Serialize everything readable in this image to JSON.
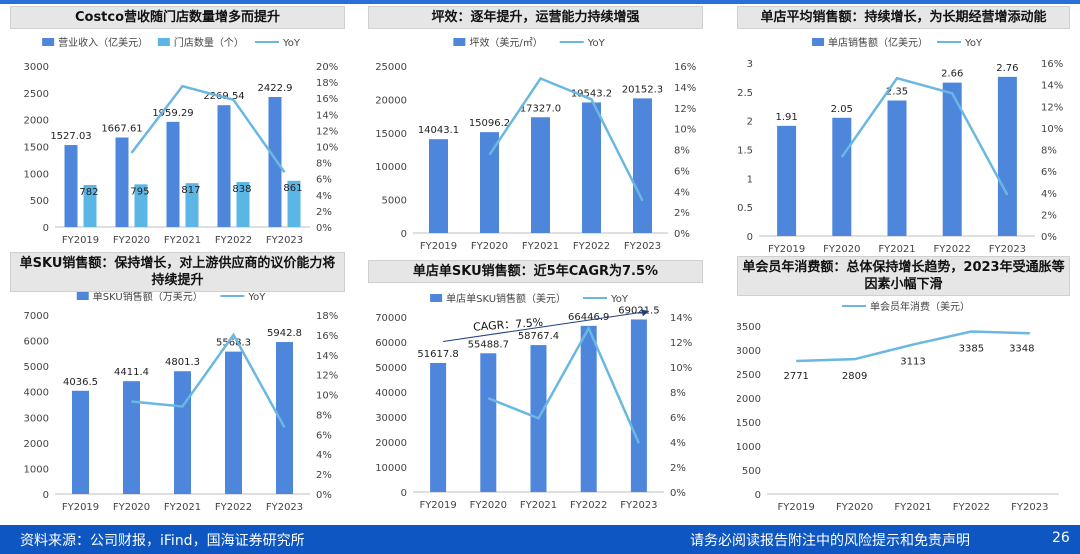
{
  "footer": {
    "source": "资料来源：公司财报，iFind，国海证券研究所",
    "disclaimer": "请务必阅读报告附注中的风险提示和免责声明",
    "page": "26"
  },
  "colors": {
    "bar": "#4e86dc",
    "bar2": "#5bb6e6",
    "line": "#6ab8e2",
    "footer": "#0e56c2"
  },
  "chart_data": [
    {
      "type": "bar",
      "title": "Costco营收随门店数量增多而提升",
      "categories": [
        "FY2019",
        "FY2020",
        "FY2021",
        "FY2022",
        "FY2023"
      ],
      "series": [
        {
          "name": "营业收入（亿美元）",
          "kind": "bar",
          "axis": "left",
          "values": [
            1527.03,
            1667.61,
            1959.29,
            2269.54,
            2422.9
          ],
          "labels": [
            "1527.03",
            "1667.61",
            "1959.29",
            "2269.54",
            "2422.9"
          ]
        },
        {
          "name": "门店数量（个）",
          "kind": "bar",
          "axis": "left",
          "values": [
            782,
            795,
            817,
            838,
            861
          ],
          "labels": [
            "782",
            "795",
            "817",
            "838",
            "861"
          ]
        },
        {
          "name": "YoY",
          "kind": "line",
          "axis": "right",
          "x": [
            "FY2020",
            "FY2021",
            "FY2022",
            "FY2023"
          ],
          "values": [
            9.2,
            17.5,
            15.8,
            6.8
          ]
        }
      ],
      "ylim": [
        0,
        3000
      ],
      "yticks": [
        "0",
        "500",
        "1000",
        "1500",
        "2000",
        "2500",
        "3000"
      ],
      "y2lim": [
        0,
        20
      ],
      "y2ticks": [
        "0%",
        "2%",
        "4%",
        "6%",
        "8%",
        "10%",
        "12%",
        "14%",
        "16%",
        "18%",
        "20%"
      ],
      "legend": "top"
    },
    {
      "type": "bar",
      "title": "坪效：逐年提升，运营能力持续增强",
      "categories": [
        "FY2019",
        "FY2020",
        "FY2021",
        "FY2022",
        "FY2023"
      ],
      "series": [
        {
          "name": "坪效（美元/㎡）",
          "kind": "bar",
          "axis": "left",
          "values": [
            14043.1,
            15096.2,
            17327.0,
            19543.2,
            20152.3
          ],
          "labels": [
            "14043.1",
            "15096.2",
            "17327.0",
            "19543.2",
            "20152.3"
          ]
        },
        {
          "name": "YoY",
          "kind": "line",
          "axis": "right",
          "x": [
            "FY2020",
            "FY2021",
            "FY2022",
            "FY2023"
          ],
          "values": [
            7.5,
            14.8,
            12.8,
            3.1
          ]
        }
      ],
      "ylim": [
        0,
        25000
      ],
      "yticks": [
        "0",
        "5000",
        "10000",
        "15000",
        "20000",
        "25000"
      ],
      "y2lim": [
        0,
        16
      ],
      "y2ticks": [
        "0%",
        "2%",
        "4%",
        "6%",
        "8%",
        "10%",
        "12%",
        "14%",
        "16%"
      ],
      "legend": "top"
    },
    {
      "type": "bar",
      "title": "单店平均销售额：持续增长，为长期经营增添动能",
      "categories": [
        "FY2019",
        "FY2020",
        "FY2021",
        "FY2022",
        "FY2023"
      ],
      "series": [
        {
          "name": "单店销售额（亿美元）",
          "kind": "bar",
          "axis": "left",
          "values": [
            1.91,
            2.05,
            2.35,
            2.66,
            2.76
          ],
          "labels": [
            "1.91",
            "2.05",
            "2.35",
            "2.66",
            "2.76"
          ]
        },
        {
          "name": "YoY",
          "kind": "line",
          "axis": "right",
          "x": [
            "FY2020",
            "FY2021",
            "FY2022",
            "FY2023"
          ],
          "values": [
            7.3,
            14.6,
            13.2,
            3.8
          ]
        }
      ],
      "ylim": [
        0,
        3
      ],
      "yticks": [
        "0",
        "0.5",
        "1",
        "1.5",
        "2",
        "2.5",
        "3"
      ],
      "y2lim": [
        0,
        16
      ],
      "y2ticks": [
        "0%",
        "2%",
        "4%",
        "6%",
        "8%",
        "10%",
        "12%",
        "14%",
        "16%"
      ],
      "legend": "top"
    },
    {
      "type": "bar",
      "title": "单SKU销售额：保持增长，对上游供应商的议价能力将持续提升",
      "categories": [
        "FY2019",
        "FY2020",
        "FY2021",
        "FY2022",
        "FY2023"
      ],
      "series": [
        {
          "name": "单SKU销售额（万美元）",
          "kind": "bar",
          "axis": "left",
          "values": [
            4036.5,
            4411.4,
            4801.3,
            5568.3,
            5942.8
          ],
          "labels": [
            "4036.5",
            "4411.4",
            "4801.3",
            "5568.3",
            "5942.8"
          ]
        },
        {
          "name": "YoY",
          "kind": "line",
          "axis": "right",
          "x": [
            "FY2020",
            "FY2021",
            "FY2022",
            "FY2023"
          ],
          "values": [
            9.3,
            8.8,
            16.0,
            6.7
          ]
        }
      ],
      "ylim": [
        0,
        7000
      ],
      "yticks": [
        "0",
        "1000",
        "2000",
        "3000",
        "4000",
        "5000",
        "6000",
        "7000"
      ],
      "y2lim": [
        0,
        18
      ],
      "y2ticks": [
        "0%",
        "2%",
        "4%",
        "6%",
        "8%",
        "10%",
        "12%",
        "14%",
        "16%",
        "18%"
      ],
      "legend": "top"
    },
    {
      "type": "bar",
      "title": "单店单SKU销售额：近5年CAGR为7.5%",
      "categories": [
        "FY2019",
        "FY2020",
        "FY2021",
        "FY2022",
        "FY2023"
      ],
      "series": [
        {
          "name": "单店单SKU销售额（美元）",
          "kind": "bar",
          "axis": "left",
          "values": [
            51617.8,
            55488.7,
            58767.4,
            66446.9,
            69021.5
          ],
          "labels": [
            "51617.8",
            "55488.7",
            "58767.4",
            "66446.9",
            "69021.5"
          ]
        },
        {
          "name": "YoY",
          "kind": "line",
          "axis": "right",
          "x": [
            "FY2020",
            "FY2021",
            "FY2022",
            "FY2023"
          ],
          "values": [
            7.5,
            5.9,
            13.1,
            3.9
          ]
        }
      ],
      "ylim": [
        0,
        70000
      ],
      "yticks": [
        "0",
        "10000",
        "20000",
        "30000",
        "40000",
        "50000",
        "60000",
        "70000"
      ],
      "y2lim": [
        0,
        14
      ],
      "y2ticks": [
        "0%",
        "2%",
        "4%",
        "6%",
        "8%",
        "10%",
        "12%",
        "14%"
      ],
      "annotation": "CAGR：7.5%",
      "legend": "top"
    },
    {
      "type": "line",
      "title": "单会员年消费额：总体保持增长趋势，2023年受通胀等因素小幅下滑",
      "categories": [
        "FY2019",
        "FY2020",
        "FY2021",
        "FY2022",
        "FY2023"
      ],
      "series": [
        {
          "name": "单会员年消费（美元）",
          "kind": "line",
          "axis": "left",
          "values": [
            2771,
            2809,
            3113,
            3385,
            3348
          ],
          "labels": [
            "2771",
            "2809",
            "3113",
            "3385",
            "3348"
          ]
        }
      ],
      "ylim": [
        0,
        3500
      ],
      "yticks": [
        "0",
        "500",
        "1000",
        "1500",
        "2000",
        "2500",
        "3000",
        "3500"
      ],
      "legend": "top"
    }
  ]
}
